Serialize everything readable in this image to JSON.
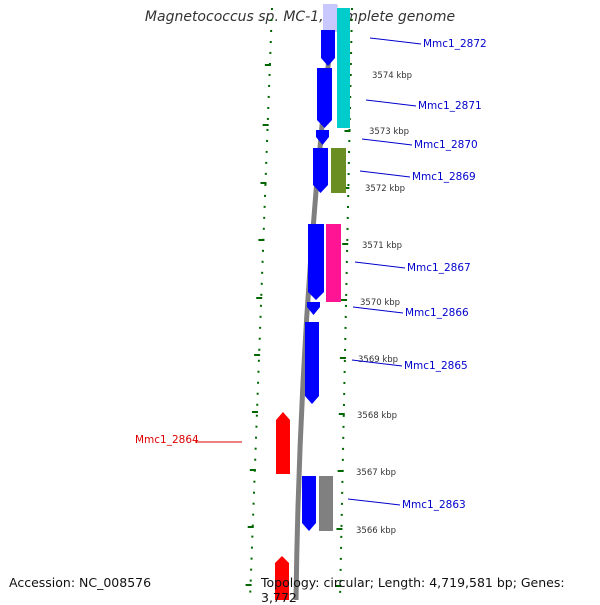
{
  "title": "Magnetococcus sp. MC-1, complete genome",
  "accession": "Accession: NC_008576",
  "summary": "Topology: circular; Length: 4,719,581 bp; Genes: 3,772",
  "colors": {
    "forward_strand": "#0000ff",
    "reverse_strand": "#ff0000",
    "label_forward": "#0000cc",
    "label_reverse": "#dd0000",
    "backbone": "#808080",
    "dotted_track": "#006600"
  },
  "scale_labels": [
    "3574 kbp",
    "3573 kbp",
    "3572 kbp",
    "3571 kbp",
    "3570 kbp",
    "3569 kbp",
    "3568 kbp",
    "3567 kbp",
    "3566 kbp"
  ],
  "genes": [
    {
      "label": "Mmc1_2872",
      "strand": "forward",
      "feature_color": "#00cccc"
    },
    {
      "label": "Mmc1_2871",
      "strand": "forward",
      "feature_color": "#00cccc"
    },
    {
      "label": "Mmc1_2870",
      "strand": "forward",
      "feature_color": null
    },
    {
      "label": "Mmc1_2869",
      "strand": "forward",
      "feature_color": "#6b8e23"
    },
    {
      "label": "Mmc1_2867",
      "strand": "forward",
      "feature_color": "#ff1493"
    },
    {
      "label": "Mmc1_2866",
      "strand": "forward",
      "feature_color": null
    },
    {
      "label": "Mmc1_2865",
      "strand": "forward",
      "feature_color": null
    },
    {
      "label": "Mmc1_2864",
      "strand": "reverse",
      "feature_color": null
    },
    {
      "label": "Mmc1_2863",
      "strand": "forward",
      "feature_color": "#808080"
    }
  ]
}
